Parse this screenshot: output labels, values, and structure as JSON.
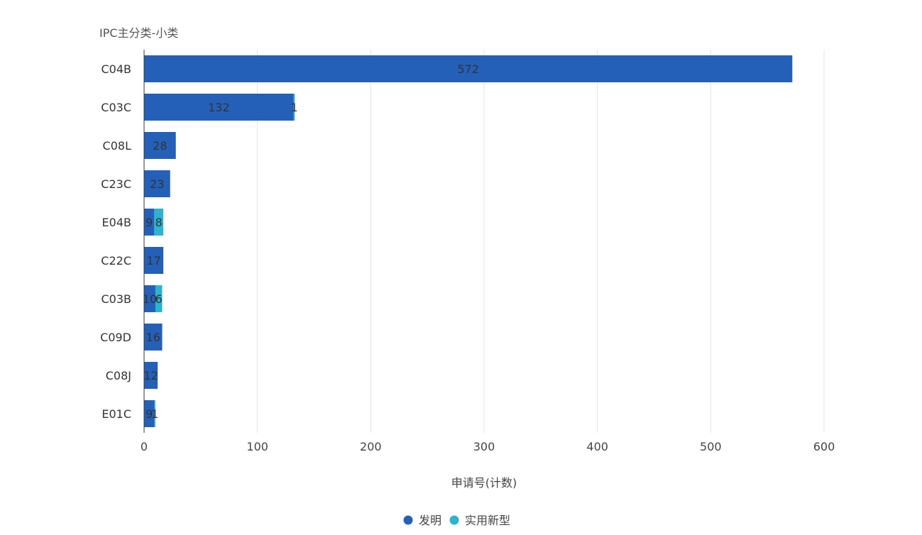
{
  "chart_data": {
    "type": "bar",
    "orientation": "horizontal",
    "stacked": true,
    "category_axis_title": "IPC主分类-小类",
    "xlabel": "申请号(计数)",
    "xlim": [
      0,
      600
    ],
    "x_ticks": [
      "0",
      "100",
      "200",
      "300",
      "400",
      "500",
      "600"
    ],
    "grid": true,
    "legend_position": "bottom-center",
    "categories": [
      "C04B",
      "C03C",
      "C08L",
      "C23C",
      "E04B",
      "C22C",
      "C03B",
      "C09D",
      "C08J",
      "E01C"
    ],
    "series": [
      {
        "name": "发明",
        "color": "#2460b8",
        "values": [
          572,
          132,
          28,
          23,
          9,
          17,
          10,
          16,
          12,
          9
        ]
      },
      {
        "name": "实用新型",
        "color": "#2db3cf",
        "values": [
          0,
          1,
          0,
          0,
          8,
          0,
          6,
          0,
          0,
          1
        ]
      }
    ]
  }
}
